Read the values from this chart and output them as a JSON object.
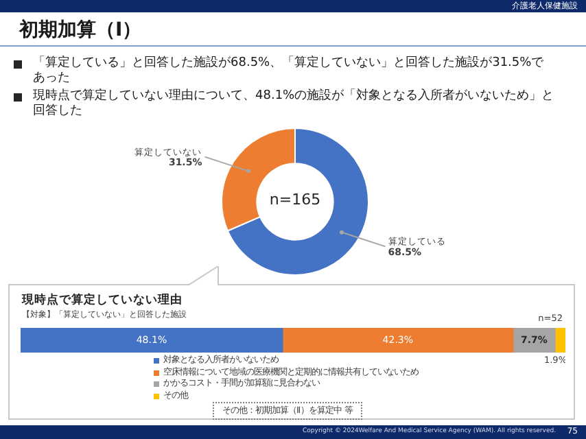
{
  "chart_data": [
    {
      "type": "donut",
      "title": "初期加算（Ⅰ）",
      "categories": [
        "算定している",
        "算定していない"
      ],
      "values": [
        68.5,
        31.5
      ],
      "colors": [
        "#4472c4",
        "#ed7d31"
      ],
      "value_labels": [
        "68.5%",
        "31.5%"
      ],
      "annotations": [
        "「算定している」と回答した施設が68.5%、「算定していない」と回答した施設が31.5%であった",
        "現時点で算定していない理由について、48.1%の施設が「対象となる入所者がいないため」と回答した",
        "n=165",
        "介護老人保健施設",
        "Copyright © 2024Welfare And Medical Service Agency (WAM). All rights reserved.",
        "75"
      ]
    },
    {
      "type": "bar",
      "orientation": "horizontal",
      "stacked": true,
      "title": "現時点で算定していない理由",
      "subtitle": "【対象】「算定していない」と回答した施設",
      "categories": [
        null
      ],
      "xlim": [
        0,
        100
      ],
      "tick_labels": false,
      "legend": "bottom",
      "series": [
        {
          "name": "対象となる入所者がいないため",
          "color": "#4472c4",
          "values": [
            48.1
          ],
          "value_labels": [
            "48.1%"
          ]
        },
        {
          "name": "空床情報について地域の医療機関と定期的に情報共有していないため",
          "color": "#ed7d31",
          "values": [
            42.3
          ],
          "value_labels": [
            "42.3%"
          ]
        },
        {
          "name": "かかるコスト・手間が加算額に見合わない",
          "color": "#a5a5a5",
          "values": [
            7.7
          ],
          "value_labels": [
            "7.7%"
          ]
        },
        {
          "name": "その他",
          "color": "#ffc000",
          "values": [
            1.9
          ],
          "value_labels": [
            "1.9%"
          ]
        }
      ],
      "annotations": [
        "n=52",
        "その他：初期加算（Ⅱ）を算定中 等"
      ]
    }
  ]
}
